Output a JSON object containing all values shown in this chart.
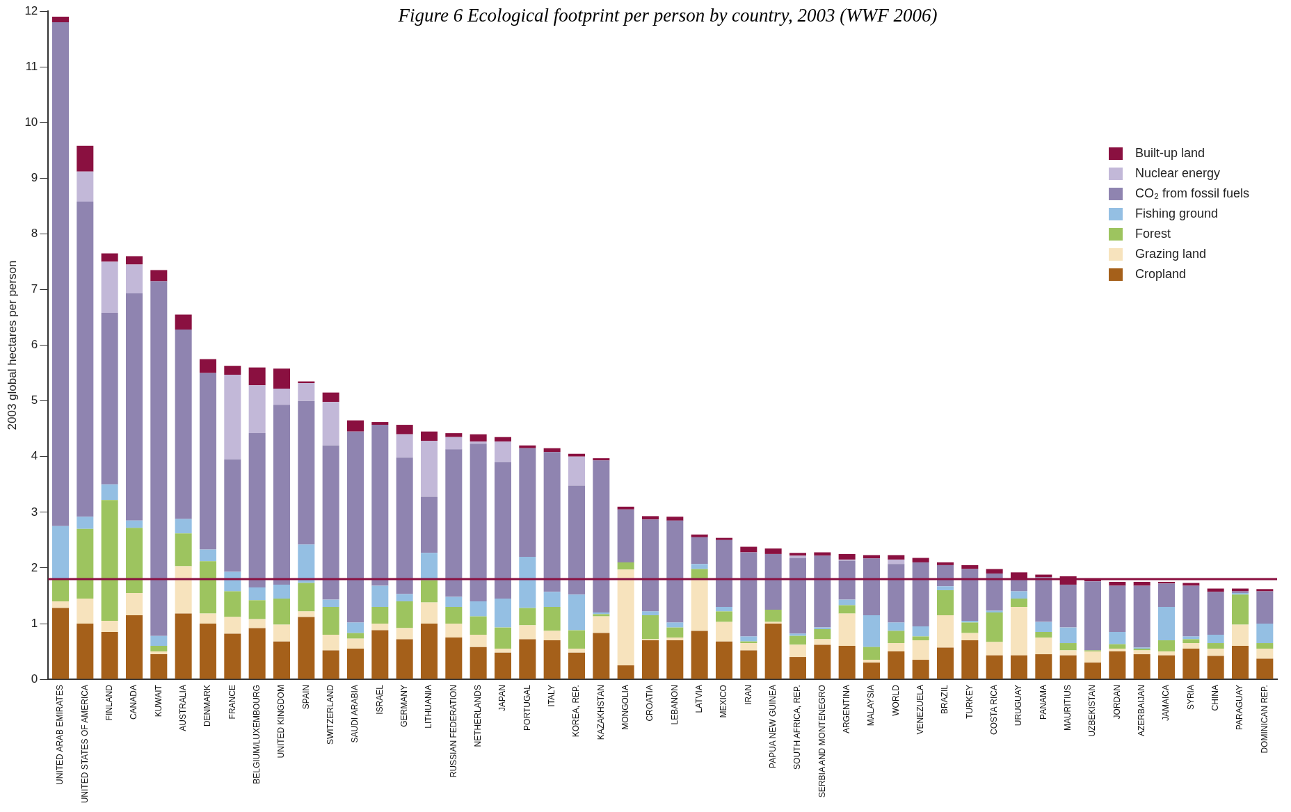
{
  "chart_data": {
    "type": "bar",
    "stacked": true,
    "title": "Figure 6 Ecological footprint per person by country, 2003 (WWF 2006)",
    "ylabel": "2003 global hectares per person",
    "categories": [
      "UNITED ARAB EMIRATES",
      "UNITED STATES OF AMERICA",
      "FINLAND",
      "CANADA",
      "KUWAIT",
      "AUSTRALIA",
      "DENMARK",
      "FRANCE",
      "BELGIUM/LUXEMBOURG",
      "UNITED KINGDOM",
      "SPAIN",
      "SWITZERLAND",
      "SAUDI ARABIA",
      "ISRAEL",
      "GERMANY",
      "LITHUANIA",
      "RUSSIAN FEDERATION",
      "NETHERLANDS",
      "JAPAN",
      "PORTUGAL",
      "ITALY",
      "KOREA, REP.",
      "KAZAKHSTAN",
      "MONGOLIA",
      "CROATIA",
      "LEBANON",
      "LATVIA",
      "MEXICO",
      "IRAN",
      "PAPUA NEW GUINEA",
      "SOUTH AFRICA, REP.",
      "SERBIA AND MONTENEGRO",
      "ARGENTINA",
      "MALAYSIA",
      "WORLD",
      "VENEZUELA",
      "BRAZIL",
      "TURKEY",
      "COSTA RICA",
      "URUGUAY",
      "PANAMA",
      "MAURITIUS",
      "UZBEKISTAN",
      "JORDAN",
      "AZERBAIJAN",
      "JAMAICA",
      "SYRIA",
      "CHINA",
      "PARAGUAY",
      "DOMINICAN REP."
    ],
    "series": [
      {
        "name": "Cropland",
        "color": "#a5601a",
        "values": [
          1.28,
          1.0,
          0.85,
          1.15,
          0.45,
          1.18,
          1.0,
          0.82,
          0.92,
          0.68,
          1.12,
          0.52,
          0.55,
          0.88,
          0.72,
          1.0,
          0.75,
          0.58,
          0.48,
          0.72,
          0.7,
          0.48,
          0.83,
          0.25,
          0.7,
          0.7,
          0.87,
          0.68,
          0.52,
          1.0,
          0.4,
          0.62,
          0.6,
          0.3,
          0.5,
          0.35,
          0.57,
          0.7,
          0.43,
          0.43,
          0.45,
          0.43,
          0.3,
          0.5,
          0.45,
          0.43,
          0.55,
          0.42,
          0.6,
          0.37
        ]
      },
      {
        "name": "Grazing land",
        "color": "#f7e3bd",
        "values": [
          0.12,
          0.45,
          0.2,
          0.4,
          0.05,
          0.85,
          0.18,
          0.3,
          0.16,
          0.3,
          0.1,
          0.28,
          0.18,
          0.12,
          0.2,
          0.38,
          0.25,
          0.22,
          0.07,
          0.25,
          0.17,
          0.07,
          0.3,
          1.72,
          0.02,
          0.05,
          0.93,
          0.35,
          0.13,
          0.03,
          0.22,
          0.1,
          0.58,
          0.05,
          0.15,
          0.35,
          0.58,
          0.13,
          0.24,
          0.87,
          0.3,
          0.09,
          0.2,
          0.05,
          0.07,
          0.07,
          0.1,
          0.13,
          0.38,
          0.18
        ]
      },
      {
        "name": "Forest",
        "color": "#9dc45f",
        "values": [
          0.4,
          1.25,
          2.17,
          1.17,
          0.1,
          0.59,
          0.94,
          0.46,
          0.34,
          0.47,
          0.51,
          0.5,
          0.1,
          0.3,
          0.48,
          0.4,
          0.3,
          0.33,
          0.38,
          0.31,
          0.43,
          0.33,
          0.04,
          0.13,
          0.43,
          0.18,
          0.18,
          0.19,
          0.03,
          0.22,
          0.16,
          0.18,
          0.15,
          0.23,
          0.22,
          0.07,
          0.45,
          0.19,
          0.53,
          0.15,
          0.1,
          0.13,
          0.02,
          0.08,
          0.03,
          0.2,
          0.07,
          0.1,
          0.54,
          0.1
        ]
      },
      {
        "name": "Fishing ground",
        "color": "#94bfe3",
        "values": [
          0.95,
          0.22,
          0.28,
          0.13,
          0.18,
          0.26,
          0.21,
          0.35,
          0.23,
          0.25,
          0.69,
          0.13,
          0.19,
          0.38,
          0.13,
          0.49,
          0.18,
          0.27,
          0.52,
          0.92,
          0.27,
          0.64,
          0.03,
          0,
          0.07,
          0.09,
          0.09,
          0.08,
          0.09,
          0,
          0.04,
          0.03,
          0.1,
          0.57,
          0.15,
          0.18,
          0.07,
          0.03,
          0.03,
          0.13,
          0.18,
          0.28,
          0,
          0.22,
          0.02,
          0.6,
          0.05,
          0.15,
          0.03,
          0.35
        ]
      },
      {
        "name": "CO₂ from fossil fuels",
        "color": "#8f84b0",
        "values": [
          9.05,
          5.66,
          3.08,
          4.08,
          6.37,
          3.4,
          3.17,
          2.02,
          2.77,
          3.23,
          2.58,
          2.77,
          3.43,
          2.89,
          2.45,
          1.01,
          2.65,
          2.83,
          2.45,
          1.95,
          2.51,
          1.96,
          2.73,
          0.95,
          1.65,
          1.83,
          0.48,
          1.2,
          1.51,
          1.0,
          1.36,
          1.29,
          0.7,
          1.02,
          1.05,
          1.15,
          0.38,
          0.93,
          0.67,
          0.22,
          0.8,
          0.77,
          1.24,
          0.83,
          1.11,
          0.42,
          0.91,
          0.77,
          0.03,
          0.58
        ]
      },
      {
        "name": "Nuclear energy",
        "color": "#c2b8d8",
        "values": [
          0,
          0.54,
          0.92,
          0.52,
          0,
          0,
          0,
          1.52,
          0.86,
          0.29,
          0.32,
          0.78,
          0,
          0,
          0.42,
          1.0,
          0.22,
          0.04,
          0.37,
          0,
          0,
          0.52,
          0,
          0,
          0,
          0,
          0,
          null,
          0,
          0,
          0.04,
          0,
          0.02,
          0,
          0.08,
          0,
          null,
          0,
          0,
          0,
          0,
          0,
          0,
          0,
          0,
          0,
          0,
          0,
          0,
          0
        ]
      },
      {
        "name": "Built-up land",
        "color": "#8a1040",
        "values": [
          0.1,
          0.46,
          0.15,
          0.15,
          0.2,
          0.27,
          0.25,
          0.16,
          0.32,
          0.36,
          0.03,
          0.17,
          0.2,
          0.05,
          0.17,
          0.17,
          0.07,
          0.13,
          0.08,
          0.05,
          0.07,
          0.05,
          0.04,
          0.05,
          0.06,
          0.07,
          0.05,
          0.04,
          0.1,
          0.1,
          0.05,
          0.06,
          0.1,
          0.06,
          0.08,
          0.08,
          0.05,
          0.07,
          0.08,
          0.12,
          0.05,
          0.15,
          0.04,
          0.07,
          0.07,
          0.03,
          0.05,
          0.06,
          0.05,
          0.04
        ]
      }
    ],
    "ylim": [
      0,
      12
    ],
    "yticks": [
      0,
      1,
      2,
      3,
      4,
      5,
      6,
      7,
      8,
      9,
      10,
      11,
      12
    ],
    "grid": false,
    "legend": "top right",
    "ref_lines": [
      {
        "axis": "y",
        "value": 1.8,
        "color": "#8a1040"
      }
    ]
  }
}
